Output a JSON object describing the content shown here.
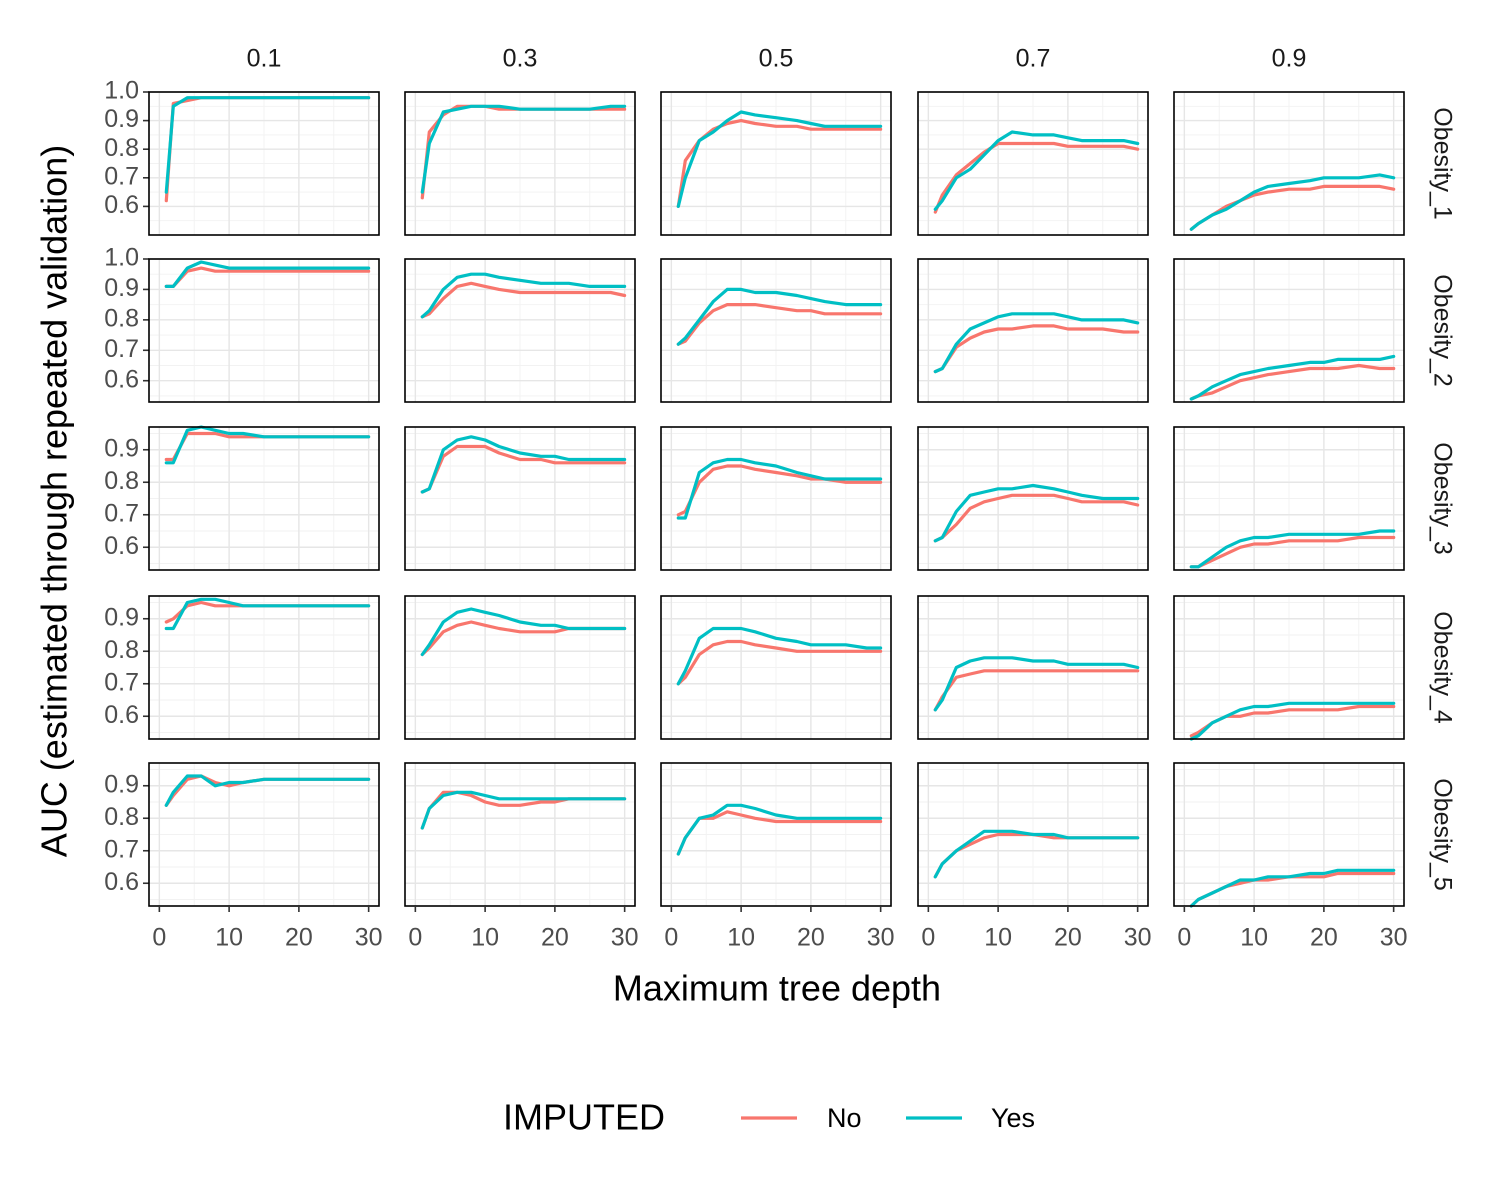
{
  "chart_data": {
    "type": "line",
    "xlabel": "Maximum tree depth",
    "ylabel": "AUC (estimated through repeated validation)",
    "legend": {
      "title": "IMPUTED",
      "position": "bottom"
    },
    "colors": {
      "No": "#F8766D",
      "Yes": "#00BFC4"
    },
    "col_facets": [
      "0.1",
      "0.3",
      "0.5",
      "0.7",
      "0.9"
    ],
    "row_facets": [
      "Obesity_1",
      "Obesity_2",
      "Obesity_3",
      "Obesity_4",
      "Obesity_5"
    ],
    "x": [
      1,
      2,
      4,
      6,
      8,
      10,
      12,
      15,
      18,
      20,
      22,
      25,
      28,
      30
    ],
    "xlim": [
      0,
      30
    ],
    "xticks": [
      0,
      10,
      20,
      30
    ],
    "row_ylim": [
      [
        0.5,
        1.0
      ],
      [
        0.53,
        1.0
      ],
      [
        0.53,
        0.97
      ],
      [
        0.53,
        0.97
      ],
      [
        0.53,
        0.97
      ]
    ],
    "row_yticks": [
      [
        0.6,
        0.7,
        0.8,
        0.9,
        1.0
      ],
      [
        0.6,
        0.7,
        0.8,
        0.9,
        1.0
      ],
      [
        0.6,
        0.7,
        0.8,
        0.9
      ],
      [
        0.6,
        0.7,
        0.8,
        0.9
      ],
      [
        0.6,
        0.7,
        0.8,
        0.9
      ]
    ],
    "grid": true,
    "panels": [
      [
        {
          "No": [
            0.62,
            0.96,
            0.97,
            0.98,
            0.98,
            0.98,
            0.98,
            0.98,
            0.98,
            0.98,
            0.98,
            0.98,
            0.98,
            0.98
          ],
          "Yes": [
            0.65,
            0.95,
            0.98,
            0.98,
            0.98,
            0.98,
            0.98,
            0.98,
            0.98,
            0.98,
            0.98,
            0.98,
            0.98,
            0.98
          ]
        },
        {
          "No": [
            0.63,
            0.86,
            0.92,
            0.95,
            0.95,
            0.95,
            0.94,
            0.94,
            0.94,
            0.94,
            0.94,
            0.94,
            0.94,
            0.94
          ],
          "Yes": [
            0.65,
            0.82,
            0.93,
            0.94,
            0.95,
            0.95,
            0.95,
            0.94,
            0.94,
            0.94,
            0.94,
            0.94,
            0.95,
            0.95
          ]
        },
        {
          "No": [
            0.6,
            0.76,
            0.83,
            0.87,
            0.89,
            0.9,
            0.89,
            0.88,
            0.88,
            0.87,
            0.87,
            0.87,
            0.87,
            0.87
          ],
          "Yes": [
            0.6,
            0.7,
            0.83,
            0.86,
            0.9,
            0.93,
            0.92,
            0.91,
            0.9,
            0.89,
            0.88,
            0.88,
            0.88,
            0.88
          ]
        },
        {
          "No": [
            0.58,
            0.64,
            0.71,
            0.75,
            0.79,
            0.82,
            0.82,
            0.82,
            0.82,
            0.81,
            0.81,
            0.81,
            0.81,
            0.8
          ],
          "Yes": [
            0.59,
            0.62,
            0.7,
            0.73,
            0.78,
            0.83,
            0.86,
            0.85,
            0.85,
            0.84,
            0.83,
            0.83,
            0.83,
            0.82
          ]
        },
        {
          "No": [
            0.52,
            0.54,
            0.57,
            0.6,
            0.62,
            0.64,
            0.65,
            0.66,
            0.66,
            0.67,
            0.67,
            0.67,
            0.67,
            0.66
          ],
          "Yes": [
            0.52,
            0.54,
            0.57,
            0.59,
            0.62,
            0.65,
            0.67,
            0.68,
            0.69,
            0.7,
            0.7,
            0.7,
            0.71,
            0.7
          ]
        }
      ],
      [
        {
          "No": [
            0.91,
            0.91,
            0.96,
            0.97,
            0.96,
            0.96,
            0.96,
            0.96,
            0.96,
            0.96,
            0.96,
            0.96,
            0.96,
            0.96
          ],
          "Yes": [
            0.91,
            0.91,
            0.97,
            0.99,
            0.98,
            0.97,
            0.97,
            0.97,
            0.97,
            0.97,
            0.97,
            0.97,
            0.97,
            0.97
          ]
        },
        {
          "No": [
            0.81,
            0.82,
            0.87,
            0.91,
            0.92,
            0.91,
            0.9,
            0.89,
            0.89,
            0.89,
            0.89,
            0.89,
            0.89,
            0.88
          ],
          "Yes": [
            0.81,
            0.83,
            0.9,
            0.94,
            0.95,
            0.95,
            0.94,
            0.93,
            0.92,
            0.92,
            0.92,
            0.91,
            0.91,
            0.91
          ]
        },
        {
          "No": [
            0.72,
            0.73,
            0.79,
            0.83,
            0.85,
            0.85,
            0.85,
            0.84,
            0.83,
            0.83,
            0.82,
            0.82,
            0.82,
            0.82
          ],
          "Yes": [
            0.72,
            0.74,
            0.8,
            0.86,
            0.9,
            0.9,
            0.89,
            0.89,
            0.88,
            0.87,
            0.86,
            0.85,
            0.85,
            0.85
          ]
        },
        {
          "No": [
            0.63,
            0.64,
            0.71,
            0.74,
            0.76,
            0.77,
            0.77,
            0.78,
            0.78,
            0.77,
            0.77,
            0.77,
            0.76,
            0.76
          ],
          "Yes": [
            0.63,
            0.64,
            0.72,
            0.77,
            0.79,
            0.81,
            0.82,
            0.82,
            0.82,
            0.81,
            0.8,
            0.8,
            0.8,
            0.79
          ]
        },
        {
          "No": [
            0.54,
            0.55,
            0.56,
            0.58,
            0.6,
            0.61,
            0.62,
            0.63,
            0.64,
            0.64,
            0.64,
            0.65,
            0.64,
            0.64
          ],
          "Yes": [
            0.54,
            0.55,
            0.58,
            0.6,
            0.62,
            0.63,
            0.64,
            0.65,
            0.66,
            0.66,
            0.67,
            0.67,
            0.67,
            0.68
          ]
        }
      ],
      [
        {
          "No": [
            0.87,
            0.87,
            0.95,
            0.95,
            0.95,
            0.94,
            0.94,
            0.94,
            0.94,
            0.94,
            0.94,
            0.94,
            0.94,
            0.94
          ],
          "Yes": [
            0.86,
            0.86,
            0.96,
            0.97,
            0.96,
            0.95,
            0.95,
            0.94,
            0.94,
            0.94,
            0.94,
            0.94,
            0.94,
            0.94
          ]
        },
        {
          "No": [
            0.77,
            0.78,
            0.88,
            0.91,
            0.91,
            0.91,
            0.89,
            0.87,
            0.87,
            0.86,
            0.86,
            0.86,
            0.86,
            0.86
          ],
          "Yes": [
            0.77,
            0.78,
            0.9,
            0.93,
            0.94,
            0.93,
            0.91,
            0.89,
            0.88,
            0.88,
            0.87,
            0.87,
            0.87,
            0.87
          ]
        },
        {
          "No": [
            0.7,
            0.71,
            0.8,
            0.84,
            0.85,
            0.85,
            0.84,
            0.83,
            0.82,
            0.81,
            0.81,
            0.8,
            0.8,
            0.8
          ],
          "Yes": [
            0.69,
            0.69,
            0.83,
            0.86,
            0.87,
            0.87,
            0.86,
            0.85,
            0.83,
            0.82,
            0.81,
            0.81,
            0.81,
            0.81
          ]
        },
        {
          "No": [
            0.62,
            0.63,
            0.67,
            0.72,
            0.74,
            0.75,
            0.76,
            0.76,
            0.76,
            0.75,
            0.74,
            0.74,
            0.74,
            0.73
          ],
          "Yes": [
            0.62,
            0.63,
            0.71,
            0.76,
            0.77,
            0.78,
            0.78,
            0.79,
            0.78,
            0.77,
            0.76,
            0.75,
            0.75,
            0.75
          ]
        },
        {
          "No": [
            0.54,
            0.54,
            0.56,
            0.58,
            0.6,
            0.61,
            0.61,
            0.62,
            0.62,
            0.62,
            0.62,
            0.63,
            0.63,
            0.63
          ],
          "Yes": [
            0.54,
            0.54,
            0.57,
            0.6,
            0.62,
            0.63,
            0.63,
            0.64,
            0.64,
            0.64,
            0.64,
            0.64,
            0.65,
            0.65
          ]
        }
      ],
      [
        {
          "No": [
            0.89,
            0.9,
            0.94,
            0.95,
            0.94,
            0.94,
            0.94,
            0.94,
            0.94,
            0.94,
            0.94,
            0.94,
            0.94,
            0.94
          ],
          "Yes": [
            0.87,
            0.87,
            0.95,
            0.96,
            0.96,
            0.95,
            0.94,
            0.94,
            0.94,
            0.94,
            0.94,
            0.94,
            0.94,
            0.94
          ]
        },
        {
          "No": [
            0.79,
            0.81,
            0.86,
            0.88,
            0.89,
            0.88,
            0.87,
            0.86,
            0.86,
            0.86,
            0.87,
            0.87,
            0.87,
            0.87
          ],
          "Yes": [
            0.79,
            0.82,
            0.89,
            0.92,
            0.93,
            0.92,
            0.91,
            0.89,
            0.88,
            0.88,
            0.87,
            0.87,
            0.87,
            0.87
          ]
        },
        {
          "No": [
            0.7,
            0.72,
            0.79,
            0.82,
            0.83,
            0.83,
            0.82,
            0.81,
            0.8,
            0.8,
            0.8,
            0.8,
            0.8,
            0.8
          ],
          "Yes": [
            0.7,
            0.74,
            0.84,
            0.87,
            0.87,
            0.87,
            0.86,
            0.84,
            0.83,
            0.82,
            0.82,
            0.82,
            0.81,
            0.81
          ]
        },
        {
          "No": [
            0.62,
            0.66,
            0.72,
            0.73,
            0.74,
            0.74,
            0.74,
            0.74,
            0.74,
            0.74,
            0.74,
            0.74,
            0.74,
            0.74
          ],
          "Yes": [
            0.62,
            0.65,
            0.75,
            0.77,
            0.78,
            0.78,
            0.78,
            0.77,
            0.77,
            0.76,
            0.76,
            0.76,
            0.76,
            0.75
          ]
        },
        {
          "No": [
            0.54,
            0.55,
            0.58,
            0.6,
            0.6,
            0.61,
            0.61,
            0.62,
            0.62,
            0.62,
            0.62,
            0.63,
            0.63,
            0.63
          ],
          "Yes": [
            0.53,
            0.54,
            0.58,
            0.6,
            0.62,
            0.63,
            0.63,
            0.64,
            0.64,
            0.64,
            0.64,
            0.64,
            0.64,
            0.64
          ]
        }
      ],
      [
        {
          "No": [
            0.84,
            0.87,
            0.92,
            0.93,
            0.91,
            0.9,
            0.91,
            0.92,
            0.92,
            0.92,
            0.92,
            0.92,
            0.92,
            0.92
          ],
          "Yes": [
            0.84,
            0.88,
            0.93,
            0.93,
            0.9,
            0.91,
            0.91,
            0.92,
            0.92,
            0.92,
            0.92,
            0.92,
            0.92,
            0.92
          ]
        },
        {
          "No": [
            0.77,
            0.83,
            0.88,
            0.88,
            0.87,
            0.85,
            0.84,
            0.84,
            0.85,
            0.85,
            0.86,
            0.86,
            0.86,
            0.86
          ],
          "Yes": [
            0.77,
            0.83,
            0.87,
            0.88,
            0.88,
            0.87,
            0.86,
            0.86,
            0.86,
            0.86,
            0.86,
            0.86,
            0.86,
            0.86
          ]
        },
        {
          "No": [
            0.69,
            0.74,
            0.8,
            0.8,
            0.82,
            0.81,
            0.8,
            0.79,
            0.79,
            0.79,
            0.79,
            0.79,
            0.79,
            0.79
          ],
          "Yes": [
            0.69,
            0.74,
            0.8,
            0.81,
            0.84,
            0.84,
            0.83,
            0.81,
            0.8,
            0.8,
            0.8,
            0.8,
            0.8,
            0.8
          ]
        },
        {
          "No": [
            0.62,
            0.66,
            0.7,
            0.72,
            0.74,
            0.75,
            0.75,
            0.75,
            0.74,
            0.74,
            0.74,
            0.74,
            0.74,
            0.74
          ],
          "Yes": [
            0.62,
            0.66,
            0.7,
            0.73,
            0.76,
            0.76,
            0.76,
            0.75,
            0.75,
            0.74,
            0.74,
            0.74,
            0.74,
            0.74
          ]
        },
        {
          "No": [
            0.53,
            0.55,
            0.57,
            0.59,
            0.6,
            0.61,
            0.61,
            0.62,
            0.62,
            0.62,
            0.63,
            0.63,
            0.63,
            0.63
          ],
          "Yes": [
            0.53,
            0.55,
            0.57,
            0.59,
            0.61,
            0.61,
            0.62,
            0.62,
            0.63,
            0.63,
            0.64,
            0.64,
            0.64,
            0.64
          ]
        }
      ]
    ]
  }
}
